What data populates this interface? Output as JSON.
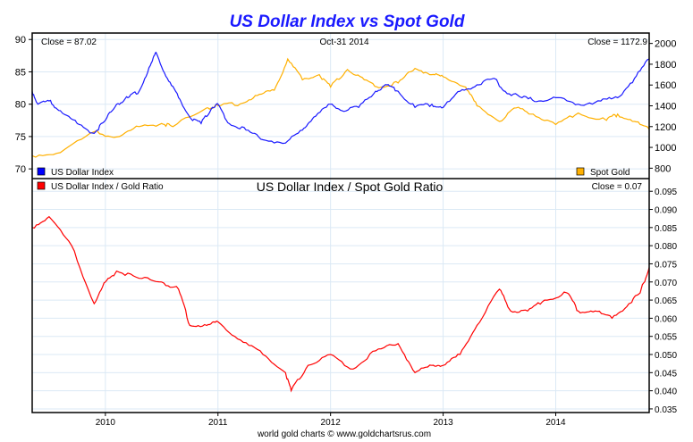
{
  "chart_data": [
    {
      "type": "line",
      "title": "US Dollar Index vs Spot Gold",
      "close_left": "Close = 87.02",
      "date": "Oct-31  2014",
      "close_right": "Close = 1172.9",
      "xlim": [
        2009.35,
        2014.83
      ],
      "x_ticks": [
        "2010",
        "2011",
        "2012",
        "2013",
        "2014"
      ],
      "ylim_left": [
        68.5,
        91
      ],
      "y_ticks_left": [
        "70",
        "75",
        "80",
        "85",
        "90"
      ],
      "ylim_right": [
        700,
        2100
      ],
      "y_ticks_right": [
        "800",
        "1000",
        "1200",
        "1400",
        "1600",
        "1800",
        "2000"
      ],
      "legend": [
        "US Dollar Index",
        "Spot Gold"
      ],
      "series": [
        {
          "name": "US Dollar Index",
          "axis": "left",
          "color": "#1a1aff",
          "x": [
            2009.35,
            2009.4,
            2009.5,
            2009.6,
            2009.75,
            2009.9,
            2010.0,
            2010.1,
            2010.2,
            2010.3,
            2010.4,
            2010.45,
            2010.55,
            2010.65,
            2010.75,
            2010.85,
            2010.95,
            2011.0,
            2011.1,
            2011.25,
            2011.4,
            2011.6,
            2011.75,
            2011.85,
            2012.0,
            2012.1,
            2012.25,
            2012.4,
            2012.5,
            2012.6,
            2012.75,
            2012.9,
            2013.0,
            2013.15,
            2013.3,
            2013.45,
            2013.55,
            2013.7,
            2013.85,
            2014.0,
            2014.2,
            2014.4,
            2014.55,
            2014.7,
            2014.83
          ],
          "y": [
            82,
            80,
            80.5,
            79,
            77,
            75.5,
            77.5,
            80,
            81,
            82,
            86,
            88,
            84,
            81,
            78,
            77,
            79.5,
            80,
            77,
            76,
            74.5,
            74,
            76,
            78,
            80,
            79,
            79.5,
            82,
            83,
            82,
            79.5,
            80,
            79.5,
            82,
            83,
            84,
            82,
            81,
            80.5,
            81,
            80,
            80.5,
            81,
            84,
            87
          ]
        },
        {
          "name": "Spot Gold",
          "axis": "right",
          "color": "#ffb000",
          "x": [
            2009.35,
            2009.6,
            2009.9,
            2010.1,
            2010.3,
            2010.5,
            2010.6,
            2010.9,
            2011.0,
            2011.2,
            2011.35,
            2011.5,
            2011.62,
            2011.75,
            2011.9,
            2012.0,
            2012.15,
            2012.3,
            2012.45,
            2012.6,
            2012.75,
            2012.9,
            2013.0,
            2013.2,
            2013.3,
            2013.5,
            2013.65,
            2013.8,
            2014.0,
            2014.2,
            2014.45,
            2014.55,
            2014.7,
            2014.83
          ],
          "y": [
            920,
            950,
            1150,
            1100,
            1200,
            1230,
            1200,
            1380,
            1400,
            1420,
            1500,
            1550,
            1850,
            1650,
            1700,
            1580,
            1750,
            1650,
            1580,
            1620,
            1760,
            1700,
            1680,
            1580,
            1400,
            1250,
            1380,
            1320,
            1220,
            1330,
            1260,
            1320,
            1250,
            1173
          ]
        }
      ]
    },
    {
      "type": "line",
      "title": "US Dollar Index / Spot Gold Ratio",
      "close_right": "Close = 0.07",
      "xlim": [
        2009.35,
        2014.83
      ],
      "ylim": [
        0.034,
        0.0985
      ],
      "y_ticks": [
        "0.035",
        "0.040",
        "0.045",
        "0.050",
        "0.055",
        "0.060",
        "0.065",
        "0.070",
        "0.075",
        "0.080",
        "0.085",
        "0.090",
        "0.095"
      ],
      "legend": [
        "US Dollar Index / Gold Ratio"
      ],
      "series": [
        {
          "name": "US Dollar Index / Gold Ratio",
          "color": "#ff0000",
          "x": [
            2009.35,
            2009.5,
            2009.7,
            2009.9,
            2010.0,
            2010.1,
            2010.3,
            2010.5,
            2010.65,
            2010.75,
            2010.9,
            2011.0,
            2011.2,
            2011.4,
            2011.6,
            2011.65,
            2011.8,
            2012.0,
            2012.2,
            2012.4,
            2012.6,
            2012.75,
            2012.9,
            2013.0,
            2013.15,
            2013.3,
            2013.5,
            2013.6,
            2013.75,
            2013.9,
            2014.1,
            2014.2,
            2014.35,
            2014.5,
            2014.65,
            2014.75,
            2014.83
          ],
          "y": [
            0.085,
            0.088,
            0.08,
            0.064,
            0.07,
            0.073,
            0.071,
            0.07,
            0.068,
            0.058,
            0.058,
            0.059,
            0.054,
            0.05,
            0.045,
            0.04,
            0.047,
            0.05,
            0.046,
            0.051,
            0.053,
            0.045,
            0.047,
            0.047,
            0.05,
            0.058,
            0.068,
            0.062,
            0.062,
            0.065,
            0.067,
            0.062,
            0.062,
            0.06,
            0.064,
            0.067,
            0.074
          ]
        }
      ]
    }
  ],
  "footer": "world gold charts © www.goldchartsrus.com"
}
